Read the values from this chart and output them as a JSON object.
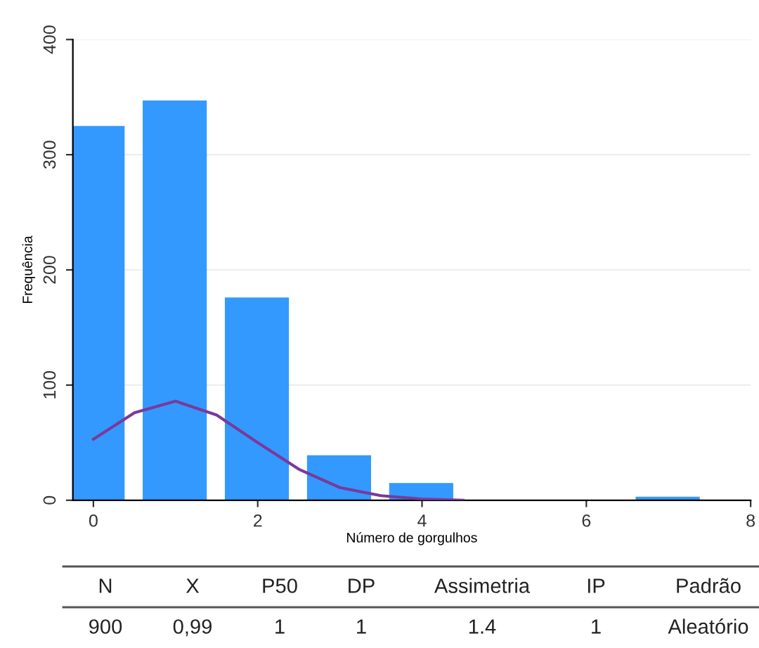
{
  "chart_data": {
    "type": "histogram",
    "xlabel": "Número de gorgulhos",
    "ylabel": "Frequência",
    "bins": [
      -0.5,
      0.5,
      1.5,
      2.5,
      3.5,
      4.5,
      5.5,
      6.5,
      7.5
    ],
    "values": [
      325,
      347,
      176,
      39,
      15,
      0,
      0,
      3
    ],
    "color": "#3399ff",
    "series": [
      {
        "type": "line",
        "color": "#7a3a9a",
        "x": [
          0,
          0.5,
          1,
          1.5,
          2,
          2.5,
          3,
          3.5,
          4,
          4.5
        ],
        "values": [
          53,
          76,
          86,
          74,
          50,
          27,
          11,
          4,
          1,
          0
        ]
      }
    ],
    "xlim": [
      -0.25,
      8
    ],
    "xticks": [
      0,
      2,
      4,
      6,
      8
    ],
    "ylim": [
      0,
      400
    ],
    "yticks": [
      0,
      100,
      200,
      300,
      400
    ],
    "grid": "y",
    "annotations": [
      "N",
      "X",
      "P50",
      "DP",
      "Assimetria",
      "IP",
      "Padrão",
      "900",
      "0,99",
      "1",
      "1",
      "1.4",
      "1",
      "Aleatório"
    ]
  }
}
